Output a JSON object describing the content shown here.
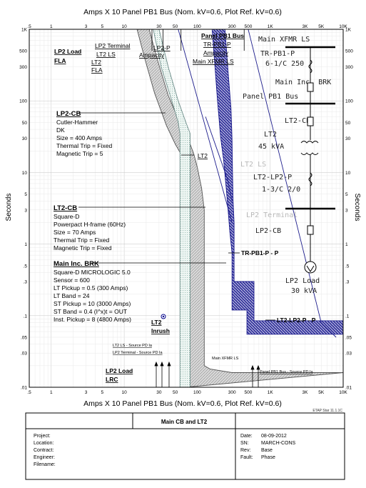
{
  "header_title": "Amps  X  10   Panel PB1 Bus (Nom. kV=0.6, Plot Ref. kV=0.6)",
  "footer_axis_title": "Amps  X  10   Panel PB1 Bus (Nom. kV=0.6, Plot Ref. kV=0.6)",
  "etap_version": "ETAP Star 11.1.1C",
  "title_block": {
    "title": "Main CB and LT2",
    "labels": [
      "Project:",
      "Location:",
      "Contract:",
      "Engineer:",
      "Filename:"
    ],
    "right_fields": [
      {
        "label": "Date:",
        "value": "08-09-2012"
      },
      {
        "label": "SN:",
        "value": "MARCH-CONS"
      },
      {
        "label": "Rev:",
        "value": "Base"
      },
      {
        "label": "Fault:",
        "value": "Phase"
      }
    ]
  },
  "chart_data": {
    "type": "line",
    "title": "Amps X 10 Panel PB1 Bus (Nom. kV=0.6, Plot Ref. kV=0.6)",
    "xlabel": "Amps X 10 Panel PB1 Bus (Nom. kV=0.6, Plot Ref. kV=0.6)",
    "ylabel": "Seconds",
    "x_scale": "log",
    "y_scale": "log",
    "xlim": [
      0.5,
      10000
    ],
    "ylim": [
      0.01,
      1000
    ],
    "x_ticks": [
      {
        "v": 0.5,
        "label": ".5"
      },
      {
        "v": 1,
        "label": "1"
      },
      {
        "v": 3,
        "label": "3"
      },
      {
        "v": 5,
        "label": "5"
      },
      {
        "v": 10,
        "label": "10"
      },
      {
        "v": 30,
        "label": "30"
      },
      {
        "v": 50,
        "label": "50"
      },
      {
        "v": 100,
        "label": "100"
      },
      {
        "v": 300,
        "label": "300"
      },
      {
        "v": 500,
        "label": "500"
      },
      {
        "v": 1000,
        "label": "1K"
      },
      {
        "v": 3000,
        "label": "3K"
      },
      {
        "v": 5000,
        "label": "5K"
      },
      {
        "v": 10000,
        "label": "10K"
      }
    ],
    "y_ticks": [
      {
        "v": 1000,
        "label": "1K"
      },
      {
        "v": 500,
        "label": "500"
      },
      {
        "v": 300,
        "label": "300"
      },
      {
        "v": 100,
        "label": "100"
      },
      {
        "v": 50,
        "label": "50"
      },
      {
        "v": 30,
        "label": "30"
      },
      {
        "v": 10,
        "label": "10"
      },
      {
        "v": 5,
        "label": "5"
      },
      {
        "v": 3,
        "label": "3"
      },
      {
        "v": 1,
        "label": "1"
      },
      {
        "v": 0.5,
        "label": ".5"
      },
      {
        "v": 0.3,
        "label": ".3"
      },
      {
        "v": 0.1,
        "label": ".1"
      },
      {
        "v": 0.05,
        "label": ".05"
      },
      {
        "v": 0.03,
        "label": ".03"
      },
      {
        "v": 0.01,
        "label": ".01"
      }
    ],
    "grid": true,
    "series": [
      {
        "name": "Main Inc. BRK",
        "kind": "band",
        "color": "#1c1c8c",
        "upper": [
          [
            240,
            1000
          ],
          [
            270,
            200
          ],
          [
            290,
            80
          ],
          [
            300,
            30
          ],
          [
            305,
            10
          ],
          [
            310,
            4
          ],
          [
            320,
            2
          ],
          [
            320,
            0.3
          ],
          [
            600,
            0.3
          ],
          [
            600,
            0.085
          ],
          [
            3000,
            0.085
          ],
          [
            10000,
            0.085
          ]
        ],
        "lower": [
          [
            160,
            1000
          ],
          [
            175,
            300
          ],
          [
            190,
            100
          ],
          [
            210,
            30
          ],
          [
            230,
            15
          ],
          [
            250,
            6
          ],
          [
            265,
            3
          ],
          [
            280,
            1.5
          ],
          [
            300,
            0.75
          ],
          [
            300,
            0.12
          ],
          [
            480,
            0.12
          ],
          [
            480,
            0.055
          ],
          [
            10000,
            0.055
          ]
        ]
      },
      {
        "name": "LT2-CB",
        "kind": "band",
        "color": "#555555",
        "upper": [
          [
            22,
            1000
          ],
          [
            28,
            400
          ],
          [
            40,
            120
          ],
          [
            60,
            45
          ],
          [
            80,
            25
          ],
          [
            90,
            18
          ],
          [
            100,
            12
          ],
          [
            115,
            6
          ],
          [
            125,
            3
          ],
          [
            125,
            0.02
          ],
          [
            150,
            0.018
          ],
          [
            300,
            0.016
          ],
          [
            10000,
            0.016
          ]
        ],
        "lower": [
          [
            15,
            1000
          ],
          [
            19,
            400
          ],
          [
            26,
            130
          ],
          [
            38,
            45
          ],
          [
            50,
            25
          ],
          [
            60,
            18
          ],
          [
            65,
            12
          ],
          [
            70,
            7
          ],
          [
            70,
            0.01
          ]
        ]
      },
      {
        "name": "LP2-CB",
        "kind": "band",
        "color": "#6e8d8a",
        "upper": [
          [
            30,
            1000
          ],
          [
            40,
            300
          ],
          [
            55,
            100
          ],
          [
            70,
            50
          ],
          [
            80,
            35
          ],
          [
            80,
            0.01
          ]
        ],
        "lower": [
          [
            25,
            1000
          ],
          [
            32,
            300
          ],
          [
            45,
            100
          ],
          [
            55,
            50
          ],
          [
            58,
            35
          ],
          [
            58,
            0.01
          ]
        ]
      }
    ],
    "annotations": [
      {
        "text": "LP2 Load",
        "sub": "FLA"
      },
      {
        "text": "LP2 Terminal"
      },
      {
        "text": "LT2 LS"
      },
      {
        "text": "LT2",
        "sub": "FLA"
      },
      {
        "text": "LP2-P"
      },
      {
        "text": "Ampacity"
      },
      {
        "text": "Panel PB1 Bus"
      },
      {
        "text": "TR-PB1-P"
      },
      {
        "text": "Ampacity"
      },
      {
        "text": "Main XFMR LS"
      },
      {
        "text": "LT2"
      },
      {
        "text": "TR-PB1-P - P"
      },
      {
        "text": "LT2-LP2-P - P"
      },
      {
        "text": "LT2",
        "sub": "Inrush"
      },
      {
        "text": "LT2 LS - Source PD Ia"
      },
      {
        "text": "LP2 Terminal - Source PD Ia"
      },
      {
        "text": "LP2 Load",
        "sub": "LRC"
      },
      {
        "text": "Main XFMR LS"
      },
      {
        "text": "Panel PB1 Bus - Source PD Ia"
      }
    ],
    "device_blocks": [
      {
        "name": "LP2-CB",
        "lines": [
          "Cutler-Hammer",
          "DK",
          "Size = 400 Amps",
          "Thermal Trip = Fixed",
          "Magnetic Trip = 5"
        ]
      },
      {
        "name": "LT2-CB",
        "lines": [
          "Square-D",
          "Powerpact H-frame (60Hz)",
          "Size = 70 Amps",
          "Thermal Trip = Fixed",
          "Magnetic Trip = Fixed"
        ]
      },
      {
        "name": "Main Inc. BRK",
        "lines": [
          "Square-D  MICROLOGIC 5.0",
          "Sensor = 600",
          "LT Pickup = 0.5 (300 Amps)",
          "LT Band = 24",
          "ST Pickup = 10 (3000 Amps)",
          "ST Band = 0.4  (I^x)t = OUT",
          "Inst. Pickup = 8 (4800 Amps)"
        ]
      }
    ]
  },
  "one_line": {
    "labels": [
      {
        "text": "Main XFMR LS",
        "color": "#222222"
      },
      {
        "text": "TR-PB1-P",
        "color": "#222222"
      },
      {
        "text": "6-1/C 250",
        "color": "#222222"
      },
      {
        "text": "Main Inc. BRK",
        "color": "#222222"
      },
      {
        "text": "Panel PB1 Bus",
        "color": "#222222"
      },
      {
        "text": "LT2-CB",
        "color": "#222222"
      },
      {
        "text": "LT2",
        "color": "#222222"
      },
      {
        "text": "45 kVA",
        "color": "#222222"
      },
      {
        "text": "LT2 LS",
        "color": "#b8b8b8"
      },
      {
        "text": "LT2-LP2-P",
        "color": "#222222"
      },
      {
        "text": "1-3/C 2/0",
        "color": "#222222"
      },
      {
        "text": "LP2 Terminal",
        "color": "#b8b8b8"
      },
      {
        "text": "LP2-CB",
        "color": "#222222"
      },
      {
        "text": "LP2 Load",
        "color": "#222222"
      },
      {
        "text": "30 kVA",
        "color": "#222222"
      }
    ]
  }
}
